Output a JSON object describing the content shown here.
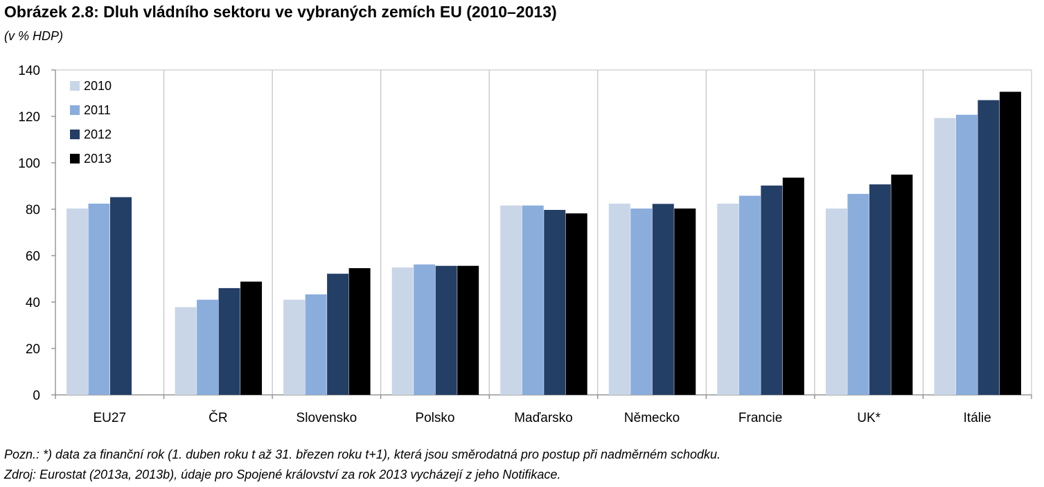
{
  "chart_data": {
    "type": "bar",
    "title": "Obrázek 2.8: Dluh vládního sektoru ve vybraných zemích EU (2010–2013)",
    "subtitle": "(v % HDP)",
    "categories": [
      "EU27",
      "ČR",
      "Slovensko",
      "Polsko",
      "Maďarsko",
      "Německo",
      "Francie",
      "UK*",
      "Itálie"
    ],
    "series": [
      {
        "name": "2010",
        "color": "#c9d6e8",
        "values": [
          80.3,
          37.8,
          41.0,
          54.9,
          81.6,
          82.4,
          82.4,
          80.3,
          119.3
        ]
      },
      {
        "name": "2011",
        "color": "#8aaddc",
        "values": [
          82.4,
          41.0,
          43.3,
          56.2,
          81.6,
          80.3,
          85.8,
          86.6,
          120.7
        ]
      },
      {
        "name": "2012",
        "color": "#243f66",
        "values": [
          85.2,
          46.0,
          52.2,
          55.6,
          79.7,
          82.3,
          90.2,
          90.7,
          127.0
        ]
      },
      {
        "name": "2013",
        "color": "#000000",
        "values": [
          null,
          48.8,
          54.6,
          55.6,
          78.2,
          80.3,
          93.6,
          94.9,
          130.6
        ]
      }
    ],
    "yticks": [
      0,
      20,
      40,
      60,
      80,
      100,
      120,
      140
    ],
    "ylim": [
      0,
      140
    ],
    "grid": "vertical",
    "legend": "top-left",
    "xlabel": "",
    "ylabel": ""
  },
  "notes": {
    "note": "Pozn.: *) data za finanční rok (1. duben roku t až 31. březen roku t+1), která jsou směrodatná pro postup při nadměrném schodku.",
    "source": "Zdroj: Eurostat (2013a, 2013b), údaje pro Spojené království za rok 2013 vycházejí z jeho Notifikace."
  }
}
